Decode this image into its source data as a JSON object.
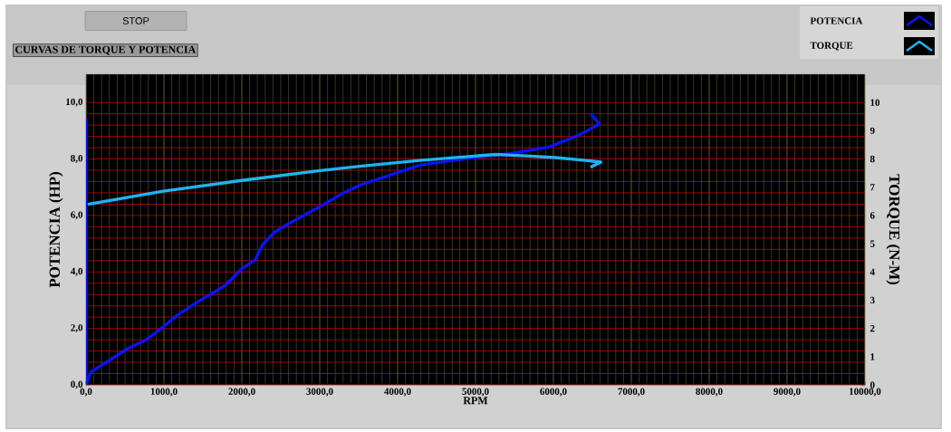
{
  "chart_data": {
    "type": "line",
    "title": "CURVAS DE TORQUE Y POTENCIA",
    "xlabel": "RPM",
    "ylabel": "POTENCIA (HP)",
    "y2label": "TORQUE (N-M)",
    "annotations": [
      "STOP"
    ],
    "xlim": [
      0,
      10000
    ],
    "ylim": [
      0,
      11
    ],
    "y2lim": [
      0,
      11
    ],
    "xticks": [
      {
        "value": 0,
        "label": "0,0"
      },
      {
        "value": 1000,
        "label": "1000,0"
      },
      {
        "value": 2000,
        "label": "2000,0"
      },
      {
        "value": 3000,
        "label": "3000,0"
      },
      {
        "value": 4000,
        "label": "4000,0"
      },
      {
        "value": 5000,
        "label": "5000,0"
      },
      {
        "value": 6000,
        "label": "6000,0"
      },
      {
        "value": 7000,
        "label": "7000,0"
      },
      {
        "value": 8000,
        "label": "8000,0"
      },
      {
        "value": 9000,
        "label": "9000,0"
      },
      {
        "value": 10000,
        "label": "10000,0"
      }
    ],
    "yticks": [
      {
        "value": 0,
        "label": "0,0"
      },
      {
        "value": 2,
        "label": "2,0"
      },
      {
        "value": 4,
        "label": "4,0"
      },
      {
        "value": 6,
        "label": "6,0"
      },
      {
        "value": 8,
        "label": "8,0"
      },
      {
        "value": 10,
        "label": "10,0"
      }
    ],
    "y2ticks": [
      0,
      1,
      2,
      3,
      4,
      5,
      6,
      7,
      8,
      9,
      10
    ],
    "grid": true,
    "legend": "top right",
    "series": [
      {
        "name": "POTENCIA",
        "color": "#0a14f0",
        "x": [
          0,
          0,
          58,
          543,
          756,
          988,
          1182,
          1453,
          1783,
          1996,
          2171,
          2267,
          2422,
          2616,
          3004,
          3314,
          3539,
          3817,
          4283,
          4980,
          5485,
          5950,
          6337,
          6589,
          6492
        ],
        "values": [
          9.4,
          0,
          0.45,
          1.3,
          1.57,
          2.05,
          2.49,
          2.97,
          3.51,
          4.11,
          4.43,
          4.97,
          5.41,
          5.73,
          6.32,
          6.81,
          7.1,
          7.35,
          7.78,
          8.05,
          8.21,
          8.43,
          8.86,
          9.24,
          9.57
        ]
      },
      {
        "name": "TORQUE",
        "color": "#1eb4f0",
        "axis": "y2",
        "x": [
          39,
          988,
          1996,
          3004,
          3539,
          4283,
          5252,
          5640,
          6027,
          6415,
          6609,
          6492
        ],
        "values": [
          6.4,
          6.86,
          7.24,
          7.59,
          7.75,
          7.95,
          8.16,
          8.11,
          8.05,
          7.95,
          7.89,
          7.73
        ]
      }
    ]
  }
}
